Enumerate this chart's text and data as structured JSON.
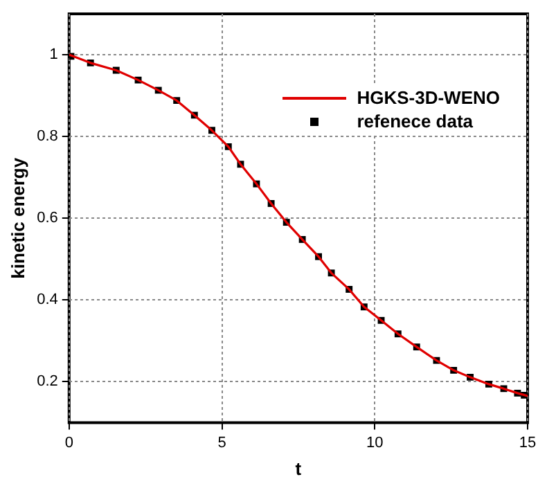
{
  "chart_data": {
    "type": "line",
    "xlabel": "t",
    "ylabel": "kinetic energy",
    "xlim": [
      0,
      15
    ],
    "xticks": [
      0,
      5,
      10,
      15
    ],
    "ylim": [
      0.1,
      1.1
    ],
    "yticks": [
      0.2,
      0.4,
      0.6,
      0.8,
      1
    ],
    "grid": true,
    "legend": "top right",
    "series": [
      {
        "name": "HGKS-3D-WENO",
        "color": "#e00000",
        "line_style": "solid",
        "marker": "none",
        "x": [
          0,
          0.7,
          1.54,
          2.26,
          2.92,
          3.52,
          4.1,
          4.67,
          5.21,
          5.61,
          6.13,
          6.61,
          7.11,
          7.63,
          8.16,
          8.58,
          9.16,
          9.65,
          10.21,
          10.76,
          11.37,
          12.02,
          12.58,
          13.12,
          13.73,
          14.22,
          14.67,
          15
        ],
        "values": [
          1.0,
          0.98,
          0.962,
          0.938,
          0.913,
          0.888,
          0.852,
          0.815,
          0.775,
          0.732,
          0.684,
          0.636,
          0.59,
          0.548,
          0.506,
          0.466,
          0.426,
          0.383,
          0.35,
          0.317,
          0.285,
          0.252,
          0.228,
          0.211,
          0.194,
          0.183,
          0.172,
          0.165
        ]
      },
      {
        "name": "refenece data",
        "type": "scatter",
        "color": "#000000",
        "marker": "square",
        "x": [
          0.06,
          0.7,
          1.54,
          2.26,
          2.92,
          3.52,
          4.1,
          4.67,
          5.21,
          5.61,
          6.13,
          6.61,
          7.11,
          7.63,
          8.16,
          8.58,
          9.16,
          9.65,
          10.21,
          10.76,
          11.37,
          12.02,
          12.58,
          13.12,
          13.73,
          14.22,
          14.67,
          14.89
        ],
        "values": [
          0.996,
          0.98,
          0.962,
          0.938,
          0.913,
          0.888,
          0.852,
          0.815,
          0.775,
          0.732,
          0.684,
          0.636,
          0.59,
          0.548,
          0.506,
          0.466,
          0.426,
          0.383,
          0.35,
          0.317,
          0.285,
          0.252,
          0.228,
          0.211,
          0.194,
          0.183,
          0.172,
          0.167
        ]
      }
    ]
  }
}
